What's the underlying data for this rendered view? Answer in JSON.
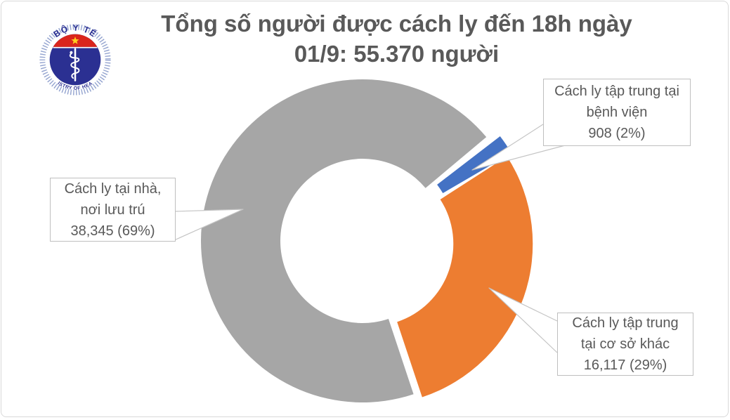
{
  "header": {
    "title_line1": "Tổng số người được cách ly đến 18h ngày",
    "title_line2": "01/9: 55.370 người",
    "logo": {
      "top_text": "BỘ Y TẾ",
      "bottom_text": "MINISTRY OF HEALTH",
      "colors": {
        "navy": "#2b3092",
        "red": "#da251c",
        "star_yellow": "#ffcf1f",
        "rays_blue": "#93a3cf"
      }
    }
  },
  "chart_data": {
    "type": "pie",
    "donut": true,
    "title": "Tổng số người được cách ly đến 18h ngày 01/9: 55.370 người",
    "total_people": "55.370",
    "as_of": "18h ngày 01/9",
    "start_angle_deg": 50,
    "legend": "none",
    "label_style": "callout-boxes",
    "series": [
      {
        "id": "hospital",
        "label": "Cách ly tập trung tại bệnh viện",
        "value": 908,
        "percent": 2,
        "display": "908 (2%)",
        "color": "#4472C4",
        "lines": [
          "Cách ly tập trung tại",
          "bệnh viện",
          "908 (2%)"
        ]
      },
      {
        "id": "other-facility",
        "label": "Cách ly tập trung tại cơ sở khác",
        "value": 16117,
        "percent": 29,
        "display": "16,117 (29%)",
        "color": "#ED7D31",
        "lines": [
          "Cách ly tập trung",
          "tại cơ sở khác",
          "16,117 (29%)"
        ]
      },
      {
        "id": "home",
        "label": "Cách ly tại nhà, nơi lưu trú",
        "value": 38345,
        "percent": 69,
        "display": "38,345 (69%)",
        "color": "#A6A6A6",
        "lines": [
          "Cách ly tại nhà,",
          "nơi lưu trú",
          "38,345 (69%)"
        ]
      }
    ]
  }
}
